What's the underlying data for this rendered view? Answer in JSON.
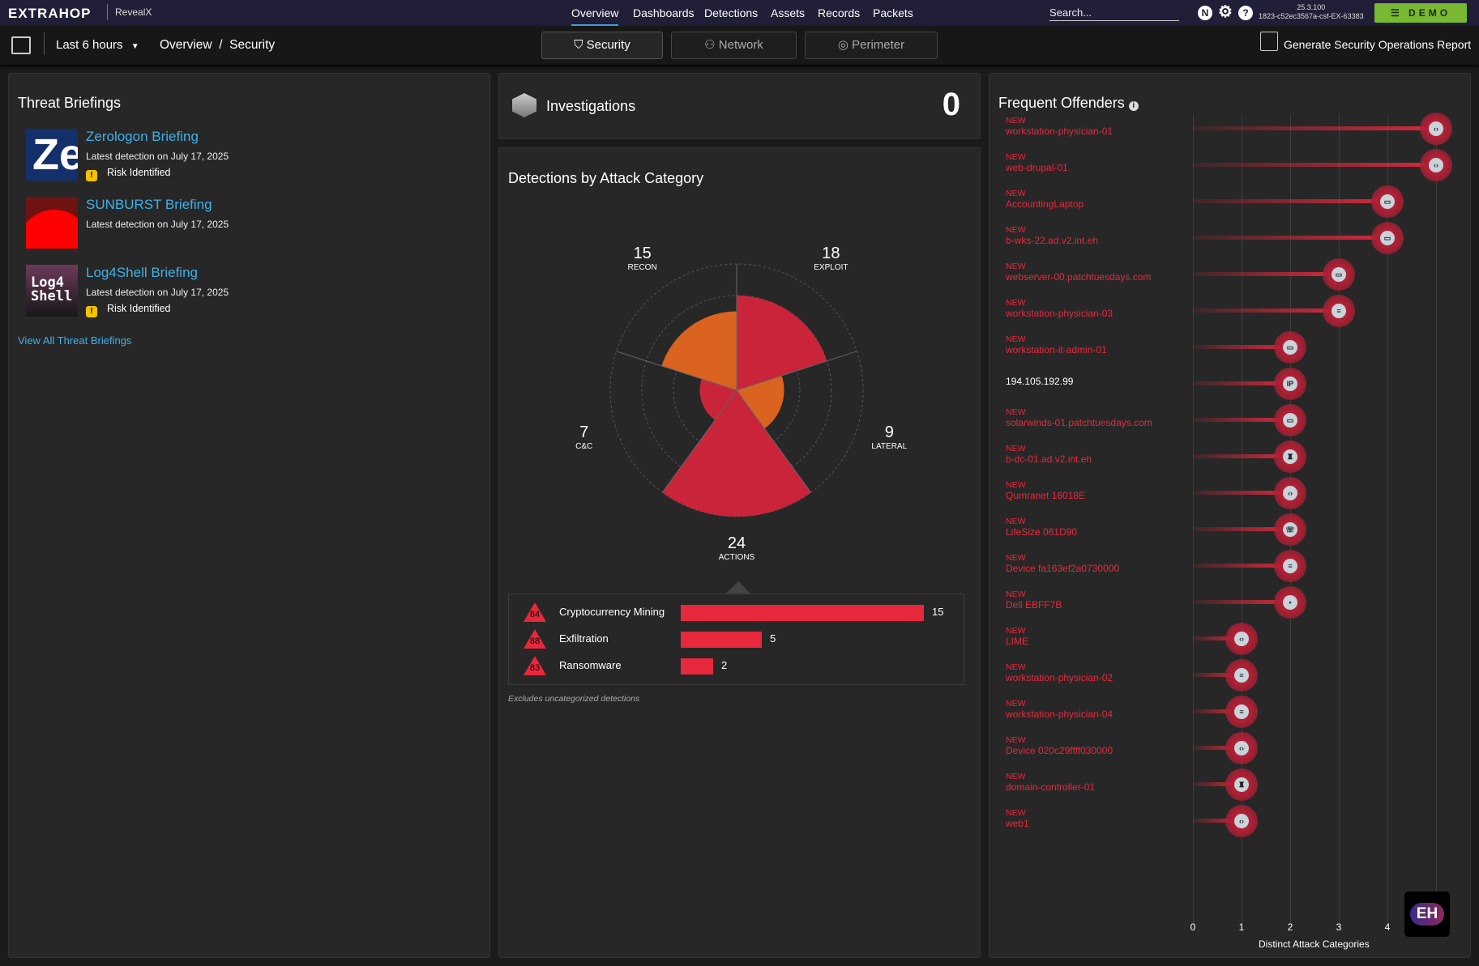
{
  "topbar": {
    "logo": "EXTRAHOP",
    "product": "RevealX",
    "nav": [
      "Overview",
      "Dashboards",
      "Detections",
      "Assets",
      "Records",
      "Packets"
    ],
    "active_nav": "Overview",
    "search_placeholder": "Search...",
    "icons": [
      "notifications-icon",
      "gear-icon",
      "help-icon"
    ],
    "notif_letter": "N",
    "version": "25.3.100",
    "instance": "1823-c52ec3567a-csf-EX-63383",
    "demo_label": "DEMO"
  },
  "subbar": {
    "time_range": "Last 6 hours",
    "breadcrumb": [
      "Overview",
      "Security"
    ],
    "tabs": [
      "Security",
      "Network",
      "Perimeter"
    ],
    "active_tab": "Security",
    "report_label": "Generate Security Operations Report"
  },
  "threat_briefings": {
    "title": "Threat Briefings",
    "items": [
      {
        "title": "Zerologon Briefing",
        "subtitle": "Latest detection on July 17, 2025",
        "risk": "Risk Identified",
        "thumb_text": "Ze"
      },
      {
        "title": "SUNBURST Briefing",
        "subtitle": "Latest detection on July 17, 2025",
        "risk": null
      },
      {
        "title": "Log4Shell Briefing",
        "subtitle": "Latest detection on July 17, 2025",
        "risk": "Risk Identified",
        "thumb_text": "Log4 Shell"
      }
    ],
    "view_all": "View All Threat Briefings"
  },
  "investigations": {
    "title": "Investigations",
    "count": "0"
  },
  "detections": {
    "title": "Detections by Attack Category",
    "footnote": "Excludes uncategorized detections",
    "categories": [
      {
        "label": "EXPLOIT",
        "value": 18,
        "color": "#c9243a"
      },
      {
        "label": "LATERAL",
        "value": 9,
        "color": "#d9631f"
      },
      {
        "label": "ACTIONS",
        "value": 24,
        "color": "#c9243a"
      },
      {
        "label": "C&C",
        "value": 7,
        "color": "#c9243a"
      },
      {
        "label": "RECON",
        "value": 15,
        "color": "#d9631f"
      }
    ],
    "max": 24,
    "actions_breakdown": [
      {
        "score": "84",
        "label": "Cryptocurrency Mining",
        "value": 15
      },
      {
        "score": "88",
        "label": "Exfiltration",
        "value": 5
      },
      {
        "score": "83",
        "label": "Ransomware",
        "value": 2
      }
    ]
  },
  "chart_data": {
    "type": "bar",
    "title": "Frequent Offenders",
    "xlabel": "Distinct Attack Categories",
    "xlim": [
      0,
      5
    ],
    "xticks": [
      0,
      1,
      2,
      3,
      4
    ],
    "offenders": [
      {
        "new": "NEW",
        "name": "workstation-physician-01",
        "value": 5,
        "icon": "code-icon"
      },
      {
        "new": "NEW",
        "name": "web-drupal-01",
        "value": 5,
        "icon": "code-icon"
      },
      {
        "new": "NEW",
        "name": "AccountingLaptop",
        "value": 4,
        "icon": "computer-icon"
      },
      {
        "new": "NEW",
        "name": "b-wks-22.ad.v2.int.eh",
        "value": 4,
        "icon": "computer-icon"
      },
      {
        "new": "NEW",
        "name": "webserver-00.patchtuesdays.com",
        "value": 3,
        "icon": "computer-icon"
      },
      {
        "new": "NEW",
        "name": "workstation-physician-03",
        "value": 3,
        "icon": "document-icon"
      },
      {
        "new": "NEW",
        "name": "workstation-it-admin-01",
        "value": 2,
        "icon": "computer-icon"
      },
      {
        "new": "",
        "name": "194.105.192.99",
        "value": 2,
        "icon": "ip-icon"
      },
      {
        "new": "NEW",
        "name": "solarwinds-01.patchtuesdays.com",
        "value": 2,
        "icon": "computer-icon"
      },
      {
        "new": "NEW",
        "name": "b-dc-01.ad.v2.int.eh",
        "value": 2,
        "icon": "domain-controller-icon"
      },
      {
        "new": "NEW",
        "name": "Qumranet 16018E",
        "value": 2,
        "icon": "code-icon"
      },
      {
        "new": "NEW",
        "name": "LifeSize 061D90",
        "value": 2,
        "icon": "phone-icon"
      },
      {
        "new": "NEW",
        "name": "Device fa163ef2a0730000",
        "value": 2,
        "icon": "document-icon"
      },
      {
        "new": "NEW",
        "name": "Dell EBFF7B",
        "value": 2,
        "icon": "device-icon"
      },
      {
        "new": "NEW",
        "name": "LIME",
        "value": 1,
        "icon": "code-icon"
      },
      {
        "new": "NEW",
        "name": "workstation-physician-02",
        "value": 1,
        "icon": "document-icon"
      },
      {
        "new": "NEW",
        "name": "workstation-physician-04",
        "value": 1,
        "icon": "document-icon"
      },
      {
        "new": "NEW",
        "name": "Device 020c29ffff030000",
        "value": 1,
        "icon": "code-icon"
      },
      {
        "new": "NEW",
        "name": "domain-controller-01",
        "value": 1,
        "icon": "domain-controller-icon"
      },
      {
        "new": "NEW",
        "name": "web1",
        "value": 1,
        "icon": "code-icon"
      }
    ]
  },
  "badge": "EH",
  "colors": {
    "accent": "#3fb0e8",
    "danger": "#e8283c",
    "demo": "#78b833",
    "topbar": "#211f38"
  }
}
